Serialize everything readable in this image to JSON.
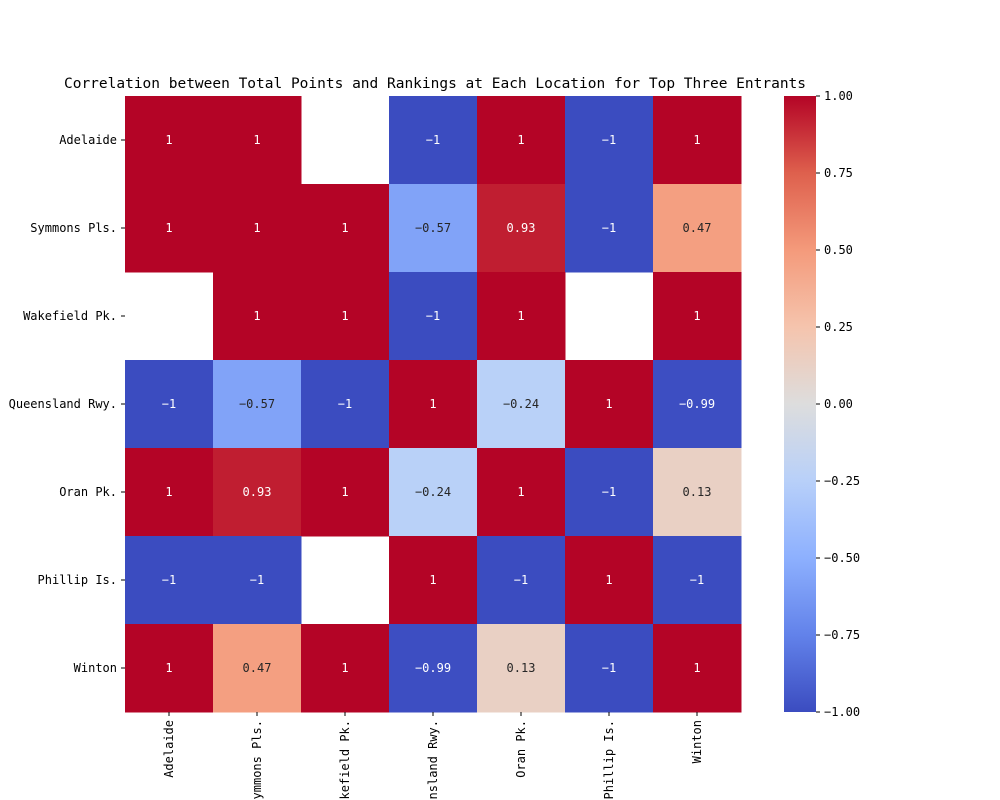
{
  "chart_data": {
    "type": "heatmap",
    "title": "Correlation between Total Points and Rankings at Each Location for Top Three Entrants",
    "xlabel": "",
    "ylabel": "",
    "rows": [
      "Adelaide",
      "Symmons Pls.",
      "Wakefield Pk.",
      "Queensland Rwy.",
      "Oran Pk.",
      "Phillip Is.",
      "Winton"
    ],
    "columns": [
      "Adelaide",
      "Symmons Pls.",
      "Wakefield Pk.",
      "Queensland Rwy.",
      "Oran Pk.",
      "Phillip Is.",
      "Winton"
    ],
    "values": [
      [
        1,
        1,
        null,
        -1,
        1,
        -1,
        1
      ],
      [
        1,
        1,
        1,
        -0.57,
        0.93,
        -1,
        0.47
      ],
      [
        null,
        1,
        1,
        -1,
        1,
        null,
        1
      ],
      [
        -1,
        -0.57,
        -1,
        1,
        -0.24,
        1,
        -0.99
      ],
      [
        1,
        0.93,
        1,
        -0.24,
        1,
        -1,
        0.13
      ],
      [
        -1,
        -1,
        null,
        1,
        -1,
        1,
        -1
      ],
      [
        1,
        0.47,
        1,
        -0.99,
        0.13,
        -1,
        1
      ]
    ],
    "colorbar": {
      "colormap": "coolwarm",
      "range": [
        -1.0,
        1.0
      ],
      "ticks": [
        1.0,
        0.75,
        0.5,
        0.25,
        0.0,
        -0.25,
        -0.5,
        -0.75,
        -1.0
      ],
      "tick_labels": [
        "1.00",
        "0.75",
        "0.50",
        "0.25",
        "0.00",
        "−0.25",
        "−0.50",
        "−0.75",
        "−1.00"
      ]
    },
    "annotations": true,
    "grid": false
  }
}
